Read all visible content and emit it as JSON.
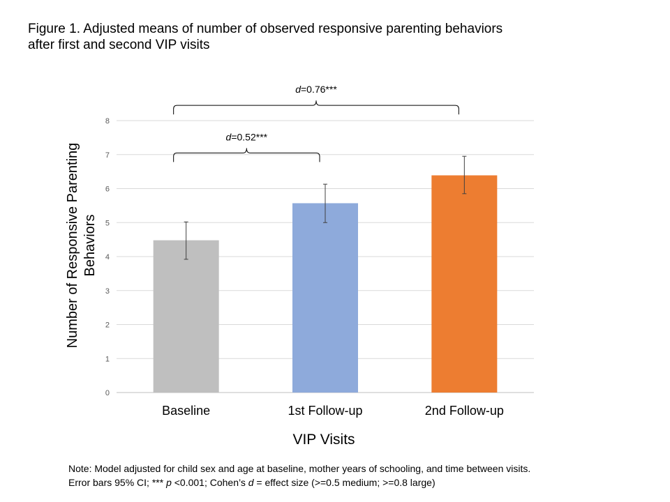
{
  "title": {
    "line1": "Figure 1. Adjusted  means of number  of observed responsive parenting behaviors",
    "line2": "after first and second VIP visits"
  },
  "note": {
    "line1": "Note: Model adjusted for child sex and age at baseline, mother years of schooling, and time between visits.",
    "line2_prefix": "Error bars 95% CI; *** ",
    "line2_p": "p",
    "line2_mid": " <0.001; Cohen’s ",
    "line2_d": "d",
    "line2_suffix": " = effect size (>=0.5 medium; >=0.8 large)"
  },
  "chart_data": {
    "type": "bar",
    "title": "Figure 1. Adjusted  means of number  of observed responsive parenting behaviors after first and second VIP visits",
    "xlabel": "VIP Visits",
    "ylabel_lines": [
      "Number  of Responsive Parenting",
      "Behaviors"
    ],
    "categories": [
      "Baseline",
      "1st Follow-up",
      "2nd Follow-up"
    ],
    "values": [
      4.48,
      5.57,
      6.39
    ],
    "error_low": [
      3.92,
      5.0,
      5.85
    ],
    "error_high": [
      5.02,
      6.13,
      6.95
    ],
    "colors": [
      "#bfbfbf",
      "#8eaadb",
      "#ed7d31"
    ],
    "ylim": [
      0,
      8
    ],
    "yticks": [
      0,
      1,
      2,
      3,
      4,
      5,
      6,
      7,
      8
    ],
    "grid": true,
    "legend": "none",
    "annotations": [
      {
        "text_italic": "d",
        "text": "=0.52***",
        "from": 0,
        "to": 1,
        "level": 7.05
      },
      {
        "text_italic": "d",
        "text": "=0.76***",
        "from": 0,
        "to": 2,
        "level": 8.45
      }
    ]
  }
}
